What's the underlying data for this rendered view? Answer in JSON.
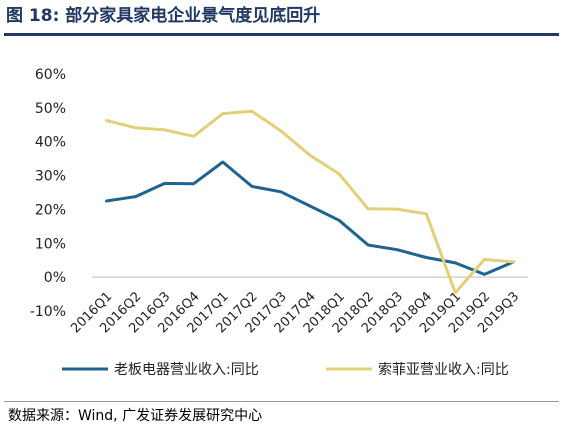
{
  "figure": {
    "title": "图 18:  部分家具家电企业景气度见底回升",
    "source": "数据来源：Wind,  广发证券发展研究中心"
  },
  "chart_data": {
    "type": "line",
    "title": "",
    "xlabel": "",
    "ylabel": "",
    "x": [
      "2016Q1",
      "2016Q2",
      "2016Q3",
      "2016Q4",
      "2017Q1",
      "2017Q2",
      "2017Q3",
      "2017Q4",
      "2018Q1",
      "2018Q2",
      "2018Q3",
      "2018Q4",
      "2019Q1",
      "2019Q2",
      "2019Q3"
    ],
    "y_ticks": [
      "60%",
      "50%",
      "40%",
      "30%",
      "20%",
      "10%",
      "0%",
      "-10%"
    ],
    "ylim": [
      -10,
      60
    ],
    "grid": false,
    "legend_position": "bottom",
    "series": [
      {
        "name": "老板电器营业收入:同比",
        "color": "#1f6391",
        "values": [
          22.5,
          23.8,
          27.7,
          27.6,
          34.0,
          26.8,
          25.2,
          21.0,
          16.8,
          9.5,
          8.1,
          5.8,
          4.2,
          0.8,
          4.5
        ]
      },
      {
        "name": "索菲亚营业收入:同比",
        "color": "#e2cf77",
        "values": [
          46.3,
          44.1,
          43.5,
          41.6,
          48.3,
          49.0,
          43.2,
          36.0,
          30.5,
          20.2,
          20.1,
          18.7,
          -4.6,
          5.2,
          4.5
        ]
      }
    ]
  }
}
